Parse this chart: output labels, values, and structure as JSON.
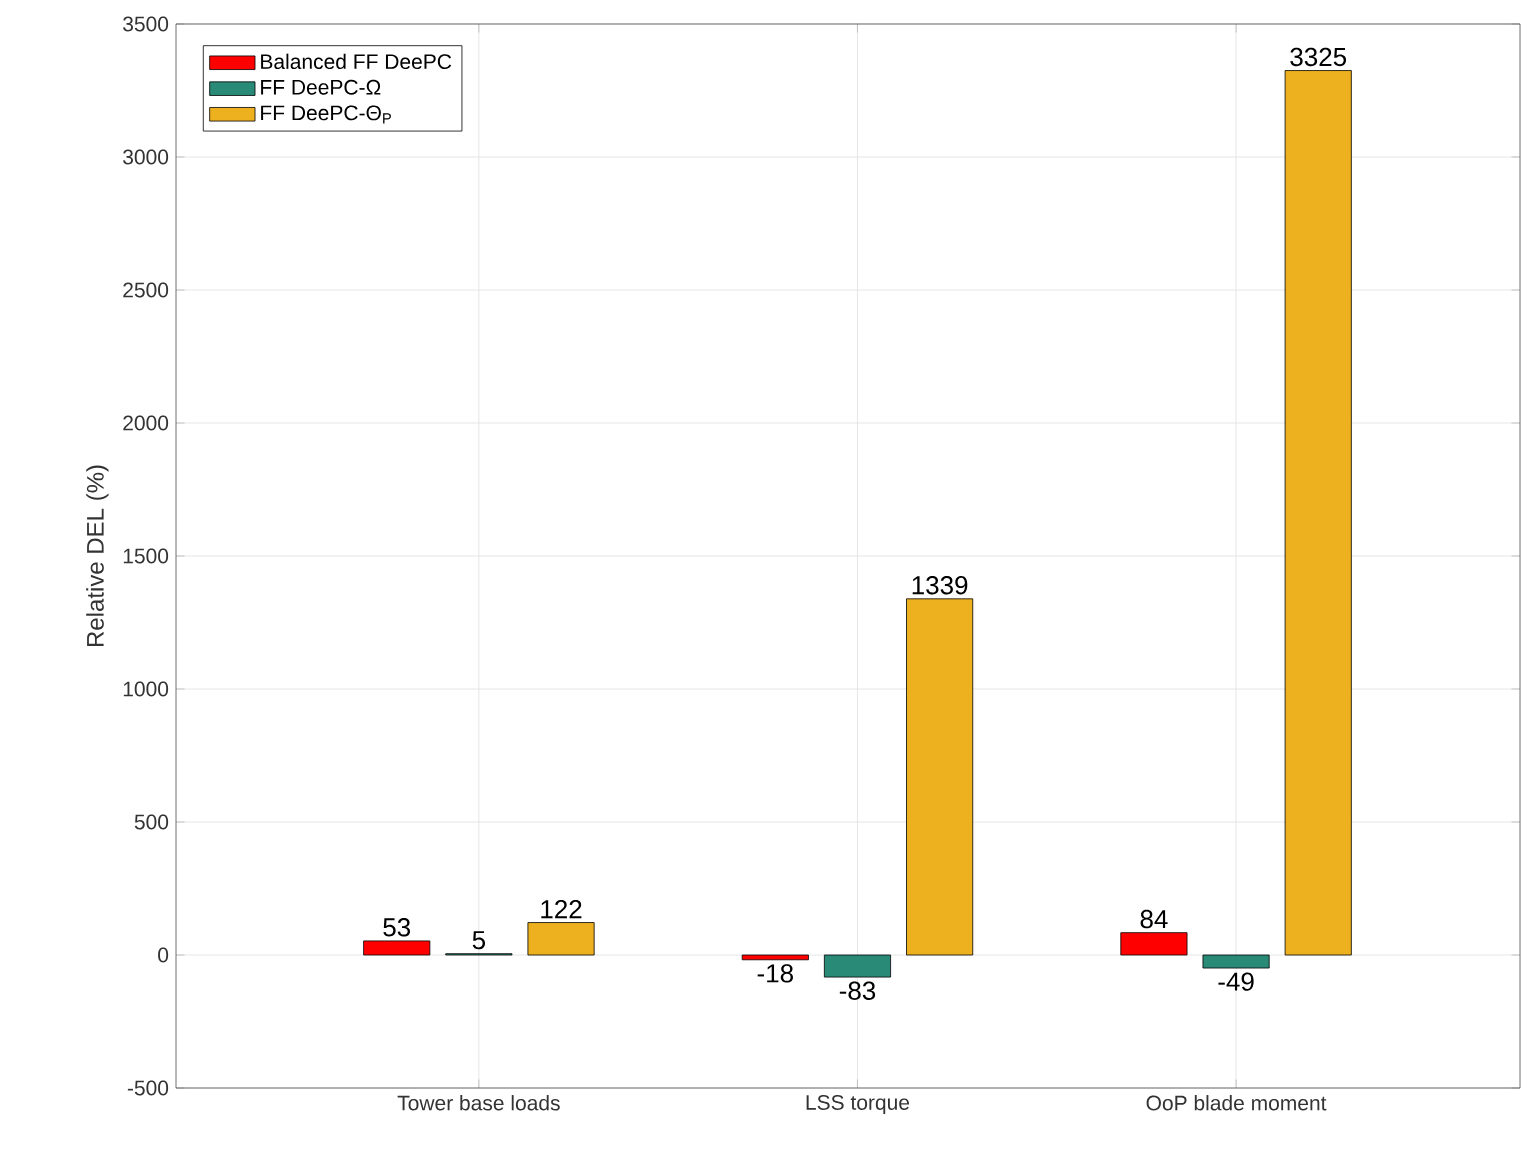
{
  "chart_data": {
    "type": "bar",
    "ylabel": "Relative DEL (%)",
    "categories": [
      "Tower base loads",
      "LSS torque",
      "OoP blade moment"
    ],
    "series": [
      {
        "name": "Balanced FF DeePC",
        "color": "#ff0000",
        "values": [
          53,
          -18,
          84
        ]
      },
      {
        "name": "FF DeePC-Ω",
        "color": "#2a8a78",
        "values": [
          5,
          -83,
          -49
        ]
      },
      {
        "name": "FF DeePC-Θ$_{P}$",
        "color": "#edb120",
        "values": [
          122,
          1339,
          3325
        ]
      }
    ],
    "ylim": [
      -500,
      3500
    ],
    "yticks": [
      -500,
      0,
      500,
      1000,
      1500,
      2000,
      2500,
      3000,
      3500
    ],
    "grid": true,
    "legend": "top left",
    "data_labels": true
  }
}
